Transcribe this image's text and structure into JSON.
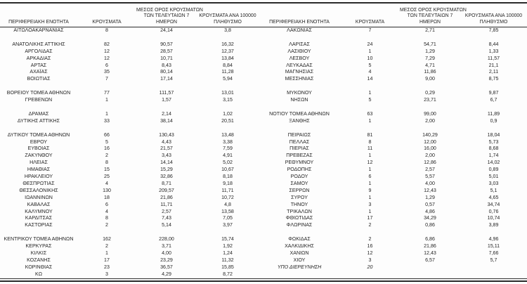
{
  "table": {
    "headers": {
      "region": "ΠΕΡΙΦΕΡΕΙΑΚΗ ΕΝΟΤΗΤΑ",
      "cases": "ΚΡΟΥΣΜΑΤΑ",
      "avg7_lines": [
        "ΜΕΣΟΣ ΟΡΟΣ ΚΡΟΥΣΜΑΤΩΝ",
        "ΤΩΝ ΤΕΛΕΥΤΑΙΩΝ 7",
        "ΗΜΕΡΩΝ"
      ],
      "per100k_lines": [
        "ΚΡΟΥΣΜΑΤΑ ΑΝΑ 100000",
        "ΠΛΗΘΥΣΜΟ"
      ]
    },
    "rows": [
      {
        "left": {
          "region": "ΑΙΤΩΛΟΑΚΑΡΝΑΝΙΑΣ",
          "cases": "8",
          "avg7": "24,14",
          "per100k": "3,8"
        },
        "right": {
          "region": "ΛΑΚΩΝΙΑΣ",
          "cases": "7",
          "avg7": "2,71",
          "per100k": "7,85"
        }
      },
      {
        "left": null,
        "right": null
      },
      {
        "left": {
          "region": "ΑΝΑΤΟΛΙΚΗΣ ΑΤΤΙΚΗΣ",
          "cases": "82",
          "avg7": "90,57",
          "per100k": "16,32"
        },
        "right": {
          "region": "ΛΑΡΙΣΑΣ",
          "cases": "24",
          "avg7": "54,71",
          "per100k": "8,44"
        }
      },
      {
        "left": {
          "region": "ΑΡΓΟΛΙΔΑΣ",
          "cases": "12",
          "avg7": "28,57",
          "per100k": "12,37"
        },
        "right": {
          "region": "ΛΑΣΙΘΙΟΥ",
          "cases": "1",
          "avg7": "1,29",
          "per100k": "1,33"
        }
      },
      {
        "left": {
          "region": "ΑΡΚΑΔΙΑΣ",
          "cases": "12",
          "avg7": "10,71",
          "per100k": "13,84"
        },
        "right": {
          "region": "ΛΕΣΒΟΥ",
          "cases": "10",
          "avg7": "7,29",
          "per100k": "11,57"
        }
      },
      {
        "left": {
          "region": "ΑΡΤΑΣ",
          "cases": "6",
          "avg7": "8,43",
          "per100k": "8,84"
        },
        "right": {
          "region": "ΛΕΥΚΑΔΑΣ",
          "cases": "5",
          "avg7": "4,71",
          "per100k": "21,1"
        }
      },
      {
        "left": {
          "region": "ΑΧΑΪΑΣ",
          "cases": "35",
          "avg7": "80,14",
          "per100k": "11,28"
        },
        "right": {
          "region": "ΜΑΓΝΗΣΙΑΣ",
          "cases": "4",
          "avg7": "11,86",
          "per100k": "2,11"
        }
      },
      {
        "left": {
          "region": "ΒΟΙΩΤΙΑΣ",
          "cases": "7",
          "avg7": "17,14",
          "per100k": "5,94"
        },
        "right": {
          "region": "ΜΕΣΣΗΝΙΑΣ",
          "cases": "14",
          "avg7": "9,00",
          "per100k": "8,75"
        }
      },
      {
        "left": null,
        "right": null
      },
      {
        "left": {
          "region": "ΒΟΡΕΙΟΥ ΤΟΜΕΑ ΑΘΗΝΩΝ",
          "cases": "77",
          "avg7": "111,57",
          "per100k": "13,01"
        },
        "right": {
          "region": "ΜΥΚΟΝΟΥ",
          "cases": "1",
          "avg7": "0,29",
          "per100k": "9,87"
        }
      },
      {
        "left": {
          "region": "ΓΡΕΒΕΝΩΝ",
          "cases": "1",
          "avg7": "1,57",
          "per100k": "3,15"
        },
        "right": {
          "region": "ΝΗΣΩΝ",
          "cases": "5",
          "avg7": "23,71",
          "per100k": "6,7"
        }
      },
      {
        "left": null,
        "right": null
      },
      {
        "left": {
          "region": "ΔΡΑΜΑΣ",
          "cases": "1",
          "avg7": "2,14",
          "per100k": "1,02"
        },
        "right": {
          "region": "ΝΟΤΙΟΥ ΤΟΜΕΑ ΑΘΗΝΩΝ",
          "cases": "63",
          "avg7": "99,00",
          "per100k": "11,89"
        }
      },
      {
        "left": {
          "region": "ΔΥΤΙΚΗΣ ΑΤΤΙΚΗΣ",
          "cases": "33",
          "avg7": "38,14",
          "per100k": "20,51"
        },
        "right": {
          "region": "ΞΑΝΘΗΣ",
          "cases": "1",
          "avg7": "2,00",
          "per100k": "0,9"
        }
      },
      {
        "left": null,
        "right": null
      },
      {
        "left": {
          "region": "ΔΥΤΙΚΟΥ ΤΟΜΕΑ ΑΘΗΝΩΝ",
          "cases": "66",
          "avg7": "130,43",
          "per100k": "13,48"
        },
        "right": {
          "region": "ΠΕΙΡΑΙΩΣ",
          "cases": "81",
          "avg7": "140,29",
          "per100k": "18,04"
        }
      },
      {
        "left": {
          "region": "ΕΒΡΟΥ",
          "cases": "5",
          "avg7": "4,43",
          "per100k": "3,38"
        },
        "right": {
          "region": "ΠΕΛΛΑΣ",
          "cases": "8",
          "avg7": "12,00",
          "per100k": "5,73"
        }
      },
      {
        "left": {
          "region": "ΕΥΒΟΙΑΣ",
          "cases": "16",
          "avg7": "21,57",
          "per100k": "7,59"
        },
        "right": {
          "region": "ΠΙΕΡΙΑΣ",
          "cases": "11",
          "avg7": "16,00",
          "per100k": "8,68"
        }
      },
      {
        "left": {
          "region": "ΖΑΚΥΝΘΟΥ",
          "cases": "2",
          "avg7": "3,43",
          "per100k": "4,91"
        },
        "right": {
          "region": "ΠΡΕΒΕΖΑΣ",
          "cases": "1",
          "avg7": "2,00",
          "per100k": "1,74"
        }
      },
      {
        "left": {
          "region": "ΗΛΕΙΑΣ",
          "cases": "8",
          "avg7": "14,14",
          "per100k": "5,02"
        },
        "right": {
          "region": "ΡΕΘΥΜΝΟΥ",
          "cases": "12",
          "avg7": "12,86",
          "per100k": "14,02"
        }
      },
      {
        "left": {
          "region": "ΗΜΑΘΙΑΣ",
          "cases": "15",
          "avg7": "15,29",
          "per100k": "10,67"
        },
        "right": {
          "region": "ΡΟΔΟΠΗΣ",
          "cases": "1",
          "avg7": "2,57",
          "per100k": "0,89"
        }
      },
      {
        "left": {
          "region": "ΗΡΑΚΛΕΙΟΥ",
          "cases": "25",
          "avg7": "32,86",
          "per100k": "8,18"
        },
        "right": {
          "region": "ΡΟΔΟΥ",
          "cases": "6",
          "avg7": "5,57",
          "per100k": "5,01"
        }
      },
      {
        "left": {
          "region": "ΘΕΣΠΡΩΤΙΑΣ",
          "cases": "4",
          "avg7": "8,71",
          "per100k": "9,18"
        },
        "right": {
          "region": "ΣΑΜΟΥ",
          "cases": "1",
          "avg7": "4,00",
          "per100k": "3,03"
        }
      },
      {
        "left": {
          "region": "ΘΕΣΣΑΛΟΝΙΚΗΣ",
          "cases": "130",
          "avg7": "209,57",
          "per100k": "11,71"
        },
        "right": {
          "region": "ΣΕΡΡΩΝ",
          "cases": "9",
          "avg7": "12,43",
          "per100k": "5,1"
        }
      },
      {
        "left": {
          "region": "ΙΩΑΝΝΙΝΩΝ",
          "cases": "18",
          "avg7": "21,86",
          "per100k": "10,72"
        },
        "right": {
          "region": "ΣΥΡΟΥ",
          "cases": "1",
          "avg7": "1,29",
          "per100k": "4,65"
        }
      },
      {
        "left": {
          "region": "ΚΑΒΑΛΑΣ",
          "cases": "6",
          "avg7": "11,71",
          "per100k": "4,8"
        },
        "right": {
          "region": "ΤΗΝΟΥ",
          "cases": "3",
          "avg7": "0,57",
          "per100k": "34,74"
        }
      },
      {
        "left": {
          "region": "ΚΑΛΥΜΝΟΥ",
          "cases": "4",
          "avg7": "2,57",
          "per100k": "13,58"
        },
        "right": {
          "region": "ΤΡΙΚΑΛΩΝ",
          "cases": "1",
          "avg7": "4,86",
          "per100k": "0,76"
        }
      },
      {
        "left": {
          "region": "ΚΑΡΔΙΤΣΑΣ",
          "cases": "8",
          "avg7": "7,43",
          "per100k": "7,05"
        },
        "right": {
          "region": "ΦΘΙΩΤΙΔΑΣ",
          "cases": "17",
          "avg7": "34,29",
          "per100k": "10,74"
        }
      },
      {
        "left": {
          "region": "ΚΑΣΤΟΡΙΑΣ",
          "cases": "2",
          "avg7": "5,14",
          "per100k": "3,97"
        },
        "right": {
          "region": "ΦΛΩΡΙΝΑΣ",
          "cases": "2",
          "avg7": "0,86",
          "per100k": "3,89"
        }
      },
      {
        "left": null,
        "right": null
      },
      {
        "left": {
          "region": "ΚΕΝΤΡΙΚΟΥ ΤΟΜΕΑ ΑΘΗΝΩΝ",
          "cases": "162",
          "avg7": "228,00",
          "per100k": "15,74"
        },
        "right": {
          "region": "ΦΩΚΙΔΑΣ",
          "cases": "2",
          "avg7": "6,86",
          "per100k": "4,96"
        }
      },
      {
        "left": {
          "region": "ΚΕΡΚΥΡΑΣ",
          "cases": "2",
          "avg7": "3,71",
          "per100k": "1,92"
        },
        "right": {
          "region": "ΧΑΛΚΙΔΙΚΗΣ",
          "cases": "16",
          "avg7": "21,86",
          "per100k": "15,11"
        }
      },
      {
        "left": {
          "region": "ΚΙΛΚΙΣ",
          "cases": "1",
          "avg7": "4,00",
          "per100k": "1,24"
        },
        "right": {
          "region": "ΧΑΝΙΩΝ",
          "cases": "12",
          "avg7": "12,43",
          "per100k": "7,66"
        }
      },
      {
        "left": {
          "region": "ΚΟΖΑΝΗΣ",
          "cases": "17",
          "avg7": "23,29",
          "per100k": "11,32"
        },
        "right": {
          "region": "ΧΙΟΥ",
          "cases": "3",
          "avg7": "6,57",
          "per100k": "5,7"
        }
      },
      {
        "left": {
          "region": "ΚΟΡΙΝΘΙΑΣ",
          "cases": "23",
          "avg7": "36,57",
          "per100k": "15,85"
        },
        "right": {
          "region": "ΥΠΟ ΔΙΕΡΕΥΝΗΣΗ",
          "cases": "20",
          "avg7": "",
          "per100k": "",
          "italic": true
        }
      },
      {
        "left": {
          "region": "ΚΩ",
          "cases": "3",
          "avg7": "4,29",
          "per100k": "8,72"
        },
        "right": null
      }
    ]
  }
}
